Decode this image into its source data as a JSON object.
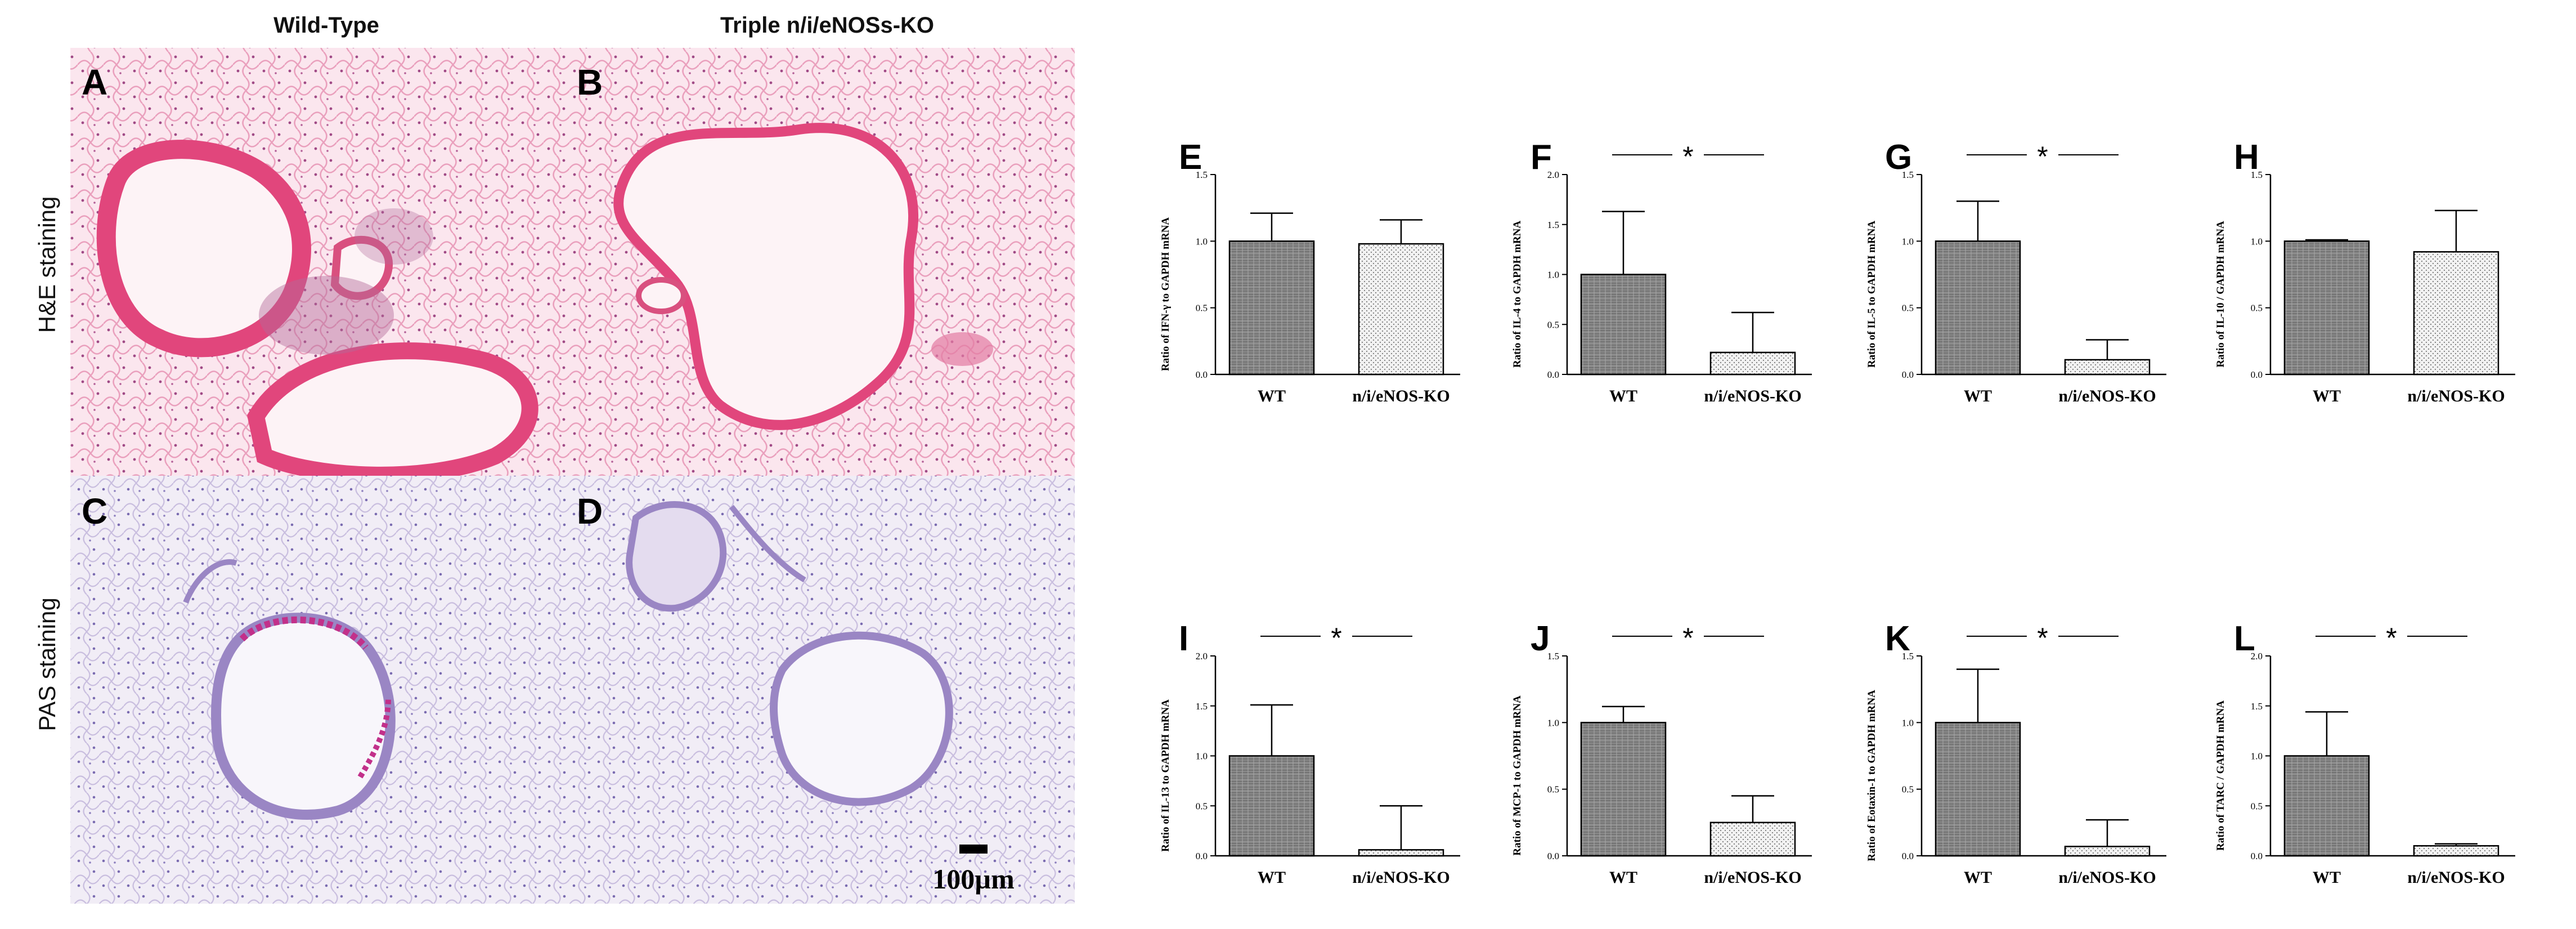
{
  "micrographs": {
    "column_titles": [
      "Wild-Type",
      "Triple n/i/eNOSs-KO"
    ],
    "row_labels": [
      "H&E staining",
      "PAS staining"
    ],
    "panels": [
      {
        "letter": "A",
        "stain": "he"
      },
      {
        "letter": "B",
        "stain": "he"
      },
      {
        "letter": "C",
        "stain": "pas"
      },
      {
        "letter": "D",
        "stain": "pas"
      }
    ],
    "scale_bar_label": "100µm",
    "colors": {
      "he_tissue": "#e85a8c",
      "he_bg": "#fbe6ee",
      "pas_tissue": "#9a86c4",
      "pas_bg": "#efeaf5",
      "pas_mucus": "#c2308a"
    }
  },
  "chart_data": [
    {
      "type": "bar",
      "letter": "E",
      "ylabel": "Ratio of IFN-γ to GAPDH mRNA",
      "categories": [
        "WT",
        "n/i/eNOS-KO"
      ],
      "values": [
        1.0,
        0.98
      ],
      "errors": [
        0.21,
        0.18
      ],
      "ylim": [
        0,
        1.5
      ],
      "yticks": [
        "0.0",
        "0.5",
        "1.0",
        "1.5"
      ],
      "significance": ""
    },
    {
      "type": "bar",
      "letter": "F",
      "ylabel": "Ratio of IL-4  to GAPDH mRNA",
      "categories": [
        "WT",
        "n/i/eNOS-KO"
      ],
      "values": [
        1.0,
        0.22
      ],
      "errors": [
        0.63,
        0.4
      ],
      "ylim": [
        0,
        2.0
      ],
      "yticks": [
        "0.0",
        "0.5",
        "1.0",
        "1.5",
        "2.0"
      ],
      "significance": "*"
    },
    {
      "type": "bar",
      "letter": "G",
      "ylabel": "Ratio of IL-5 to GAPDH mRNA",
      "categories": [
        "WT",
        "n/i/eNOS-KO"
      ],
      "values": [
        1.0,
        0.11
      ],
      "errors": [
        0.3,
        0.15
      ],
      "ylim": [
        0,
        1.5
      ],
      "yticks": [
        "0.0",
        "0.5",
        "1.0",
        "1.5"
      ],
      "significance": "*"
    },
    {
      "type": "bar",
      "letter": "H",
      "ylabel": "Ratio of IL-10 / GAPDH mRNA",
      "categories": [
        "WT",
        "n/i/eNOS-KO"
      ],
      "values": [
        1.0,
        0.92
      ],
      "errors": [
        0.01,
        0.31
      ],
      "ylim": [
        0,
        1.5
      ],
      "yticks": [
        "0.0",
        "0.5",
        "1.0",
        "1.5"
      ],
      "significance": ""
    },
    {
      "type": "bar",
      "letter": "I",
      "ylabel": "Ratio of IL-13 to GAPDH mRNA",
      "categories": [
        "WT",
        "n/i/eNOS-KO"
      ],
      "values": [
        1.0,
        0.06
      ],
      "errors": [
        0.51,
        0.44
      ],
      "ylim": [
        0,
        2.0
      ],
      "yticks": [
        "0.0",
        "0.5",
        "1.0",
        "1.5",
        "2.0"
      ],
      "significance": "*"
    },
    {
      "type": "bar",
      "letter": "J",
      "ylabel": "Ratio of MCP-1 to GAPDH mRNA",
      "categories": [
        "WT",
        "n/i/eNOS-KO"
      ],
      "values": [
        1.0,
        0.25
      ],
      "errors": [
        0.12,
        0.2
      ],
      "ylim": [
        0,
        1.5
      ],
      "yticks": [
        "0.0",
        "0.5",
        "1.0",
        "1.5"
      ],
      "significance": "*"
    },
    {
      "type": "bar",
      "letter": "K",
      "ylabel": "Ratio of Eotaxin-1 to GAPDH mRNA",
      "categories": [
        "WT",
        "n/i/eNOS-KO"
      ],
      "values": [
        1.0,
        0.07
      ],
      "errors": [
        0.4,
        0.2
      ],
      "ylim": [
        0,
        1.5
      ],
      "yticks": [
        "0.0",
        "0.5",
        "1.0",
        "1.5"
      ],
      "significance": "*"
    },
    {
      "type": "bar",
      "letter": "L",
      "ylabel": "Ratio of TARC / GAPDH mRNA",
      "categories": [
        "WT",
        "n/i/eNOS-KO"
      ],
      "values": [
        1.0,
        0.1
      ],
      "errors": [
        0.44,
        0.02
      ],
      "ylim": [
        0,
        2.0
      ],
      "yticks": [
        "0.0",
        "0.5",
        "1.0",
        "1.5",
        "2.0"
      ],
      "significance": "*"
    }
  ]
}
